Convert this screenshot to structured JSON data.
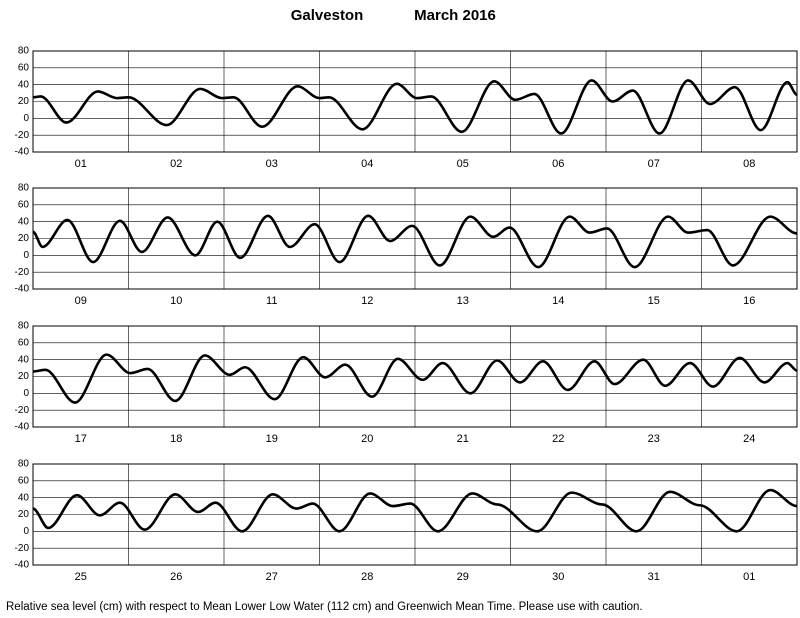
{
  "title": "Galveston",
  "date": "March   2016",
  "footnote": "Relative sea level (cm) with respect to Mean Lower Low Water (112 cm) and Greenwich Mean Time. Please use with caution.",
  "chart_data": [
    {
      "type": "line",
      "color": "#000000",
      "grid": true,
      "xlim": [
        0,
        8
      ],
      "xticks": [
        0,
        1,
        2,
        3,
        4,
        5,
        6,
        7,
        8
      ],
      "ylim": [
        -40,
        80
      ],
      "yticks": [
        -40,
        -20,
        0,
        20,
        40,
        60,
        80
      ],
      "categories": [
        "01",
        "02",
        "03",
        "04",
        "05",
        "06",
        "07",
        "08"
      ],
      "x": [
        0,
        0.08,
        0.35,
        0.68,
        0.88,
        1.0,
        1.4,
        1.75,
        1.98,
        2.1,
        2.4,
        2.77,
        3.0,
        3.1,
        3.45,
        3.81,
        4.02,
        4.17,
        4.49,
        4.83,
        5.05,
        5.25,
        5.53,
        5.85,
        6.07,
        6.28,
        6.56,
        6.86,
        7.09,
        7.35,
        7.62,
        7.9,
        8
      ],
      "values": [
        25,
        26,
        -5,
        32,
        24,
        25,
        -8,
        35,
        24,
        25,
        -10,
        38,
        24,
        25,
        -13,
        41,
        24,
        26,
        -16,
        44,
        22,
        29,
        -18,
        45,
        20,
        33,
        -18,
        45,
        17,
        37,
        -14,
        43,
        28
      ]
    },
    {
      "type": "line",
      "color": "#000000",
      "grid": true,
      "xlim": [
        0,
        8
      ],
      "xticks": [
        0,
        1,
        2,
        3,
        4,
        5,
        6,
        7,
        8
      ],
      "ylim": [
        -40,
        80
      ],
      "yticks": [
        -40,
        -20,
        0,
        20,
        40,
        60,
        80
      ],
      "categories": [
        "09",
        "10",
        "11",
        "12",
        "13",
        "14",
        "15",
        "16"
      ],
      "x": [
        0,
        0.1,
        0.36,
        0.63,
        0.91,
        1.14,
        1.41,
        1.7,
        1.93,
        2.17,
        2.46,
        2.69,
        2.95,
        3.21,
        3.51,
        3.74,
        3.97,
        4.26,
        4.58,
        4.82,
        4.99,
        5.29,
        5.62,
        5.83,
        6.01,
        6.3,
        6.65,
        6.86,
        7.06,
        7.33,
        7.72,
        8
      ],
      "values": [
        28,
        10,
        42,
        -8,
        41,
        4,
        45,
        0,
        40,
        -3,
        47,
        10,
        37,
        -8,
        47,
        17,
        35,
        -12,
        46,
        22,
        33,
        -14,
        46,
        27,
        32,
        -14,
        46,
        27,
        30,
        -12,
        46,
        26
      ]
    },
    {
      "type": "line",
      "color": "#000000",
      "grid": true,
      "xlim": [
        0,
        8
      ],
      "xticks": [
        0,
        1,
        2,
        3,
        4,
        5,
        6,
        7,
        8
      ],
      "ylim": [
        -40,
        80
      ],
      "yticks": [
        -40,
        -20,
        0,
        20,
        40,
        60,
        80
      ],
      "categories": [
        "17",
        "18",
        "19",
        "20",
        "21",
        "22",
        "23",
        "24"
      ],
      "x": [
        0,
        0.13,
        0.44,
        0.77,
        1.02,
        1.2,
        1.49,
        1.8,
        2.06,
        2.22,
        2.53,
        2.83,
        3.06,
        3.27,
        3.55,
        3.82,
        4.08,
        4.29,
        4.58,
        4.86,
        5.1,
        5.34,
        5.6,
        5.88,
        6.09,
        6.39,
        6.62,
        6.88,
        7.12,
        7.4,
        7.66,
        7.9,
        8
      ],
      "values": [
        26,
        28,
        -11,
        46,
        24,
        29,
        -9,
        45,
        22,
        31,
        -7,
        43,
        19,
        34,
        -4,
        41,
        16,
        36,
        0,
        39,
        13,
        38,
        4,
        38,
        11,
        40,
        9,
        36,
        8,
        42,
        13,
        36,
        27
      ]
    },
    {
      "type": "line",
      "color": "#000000",
      "grid": true,
      "xlim": [
        0,
        8
      ],
      "xticks": [
        0,
        1,
        2,
        3,
        4,
        5,
        6,
        7,
        8
      ],
      "ylim": [
        -40,
        80
      ],
      "yticks": [
        -40,
        -20,
        0,
        20,
        40,
        60,
        80
      ],
      "categories": [
        "25",
        "26",
        "27",
        "28",
        "29",
        "30",
        "31",
        "01"
      ],
      "x": [
        0,
        0.16,
        0.46,
        0.7,
        0.91,
        1.17,
        1.49,
        1.73,
        1.91,
        2.19,
        2.51,
        2.76,
        2.93,
        3.21,
        3.53,
        3.77,
        3.95,
        4.24,
        4.6,
        4.86,
        5.28,
        5.64,
        5.96,
        6.32,
        6.67,
        6.98,
        7.37,
        7.72,
        8
      ],
      "values": [
        27,
        4,
        43,
        19,
        34,
        2,
        44,
        23,
        34,
        0,
        44,
        27,
        33,
        0,
        45,
        30,
        33,
        0,
        45,
        32,
        0,
        46,
        32,
        0,
        47,
        31,
        0,
        49,
        30
      ]
    }
  ]
}
